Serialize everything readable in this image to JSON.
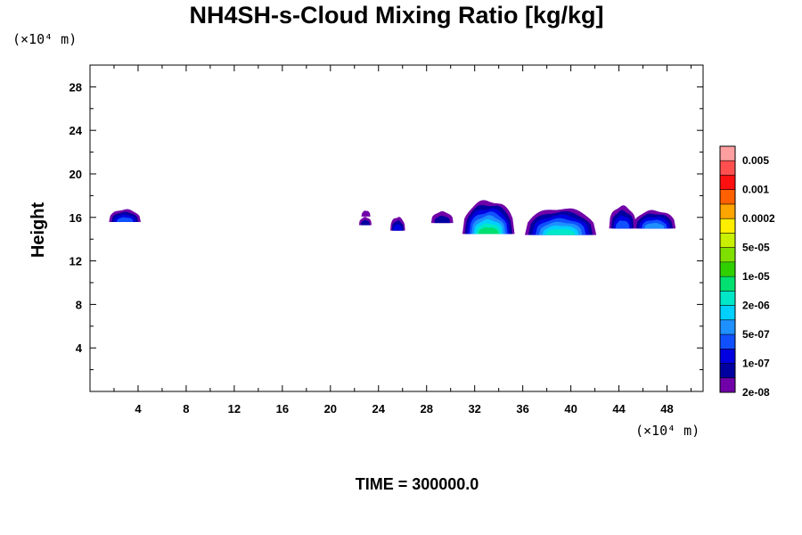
{
  "chart_data": {
    "type": "heatmap",
    "title": "NH4SH-s-Cloud Mixing Ratio [kg/kg]",
    "ylabel": "Height",
    "x_unit": "(×10⁴ m)",
    "y_unit": "(×10⁴ m)",
    "time_label": "TIME = 300000.0",
    "xlim": [
      0,
      51
    ],
    "ylim": [
      0,
      30
    ],
    "x_ticks": [
      "4",
      "8",
      "12",
      "16",
      "20",
      "24",
      "28",
      "32",
      "36",
      "40",
      "44",
      "48"
    ],
    "y_ticks": [
      "4",
      "8",
      "12",
      "16",
      "20",
      "24",
      "28"
    ],
    "colorbar": {
      "labels": [
        "0.005",
        "0.001",
        "0.0002",
        "5e-05",
        "1e-05",
        "2e-06",
        "5e-07",
        "1e-07",
        "2e-08"
      ],
      "colors": [
        "#ff9f9f",
        "#ff4f4f",
        "#ff1010",
        "#ff6000",
        "#ffa500",
        "#ffee00",
        "#c8f000",
        "#7fe000",
        "#30d000",
        "#00e070",
        "#00e8c8",
        "#00d0ff",
        "#1e90ff",
        "#1050ff",
        "#0000e0",
        "#0000a0",
        "#7000a8"
      ]
    },
    "clouds": [
      {
        "x0": 1.6,
        "x1": 4.2,
        "base": 15.6,
        "top": 16.7,
        "peak": 3.5
      },
      {
        "x0": 22.4,
        "x1": 23.4,
        "base": 15.3,
        "top": 16.0,
        "peak": 1.5
      },
      {
        "x0": 22.6,
        "x1": 23.3,
        "base": 16.1,
        "top": 16.6,
        "peak": 0.3
      },
      {
        "x0": 25.0,
        "x1": 26.2,
        "base": 14.8,
        "top": 16.0,
        "peak": 2.5
      },
      {
        "x0": 28.4,
        "x1": 30.2,
        "base": 15.5,
        "top": 16.5,
        "peak": 2.0
      },
      {
        "x0": 31.0,
        "x1": 35.3,
        "base": 14.5,
        "top": 17.5,
        "peak": 7.5
      },
      {
        "x0": 36.2,
        "x1": 42.1,
        "base": 14.4,
        "top": 16.8,
        "peak": 6.5
      },
      {
        "x0": 43.2,
        "x1": 45.4,
        "base": 15.0,
        "top": 17.0,
        "peak": 4.0
      },
      {
        "x0": 45.2,
        "x1": 48.7,
        "base": 15.0,
        "top": 16.6,
        "peak": 4.5
      }
    ]
  }
}
